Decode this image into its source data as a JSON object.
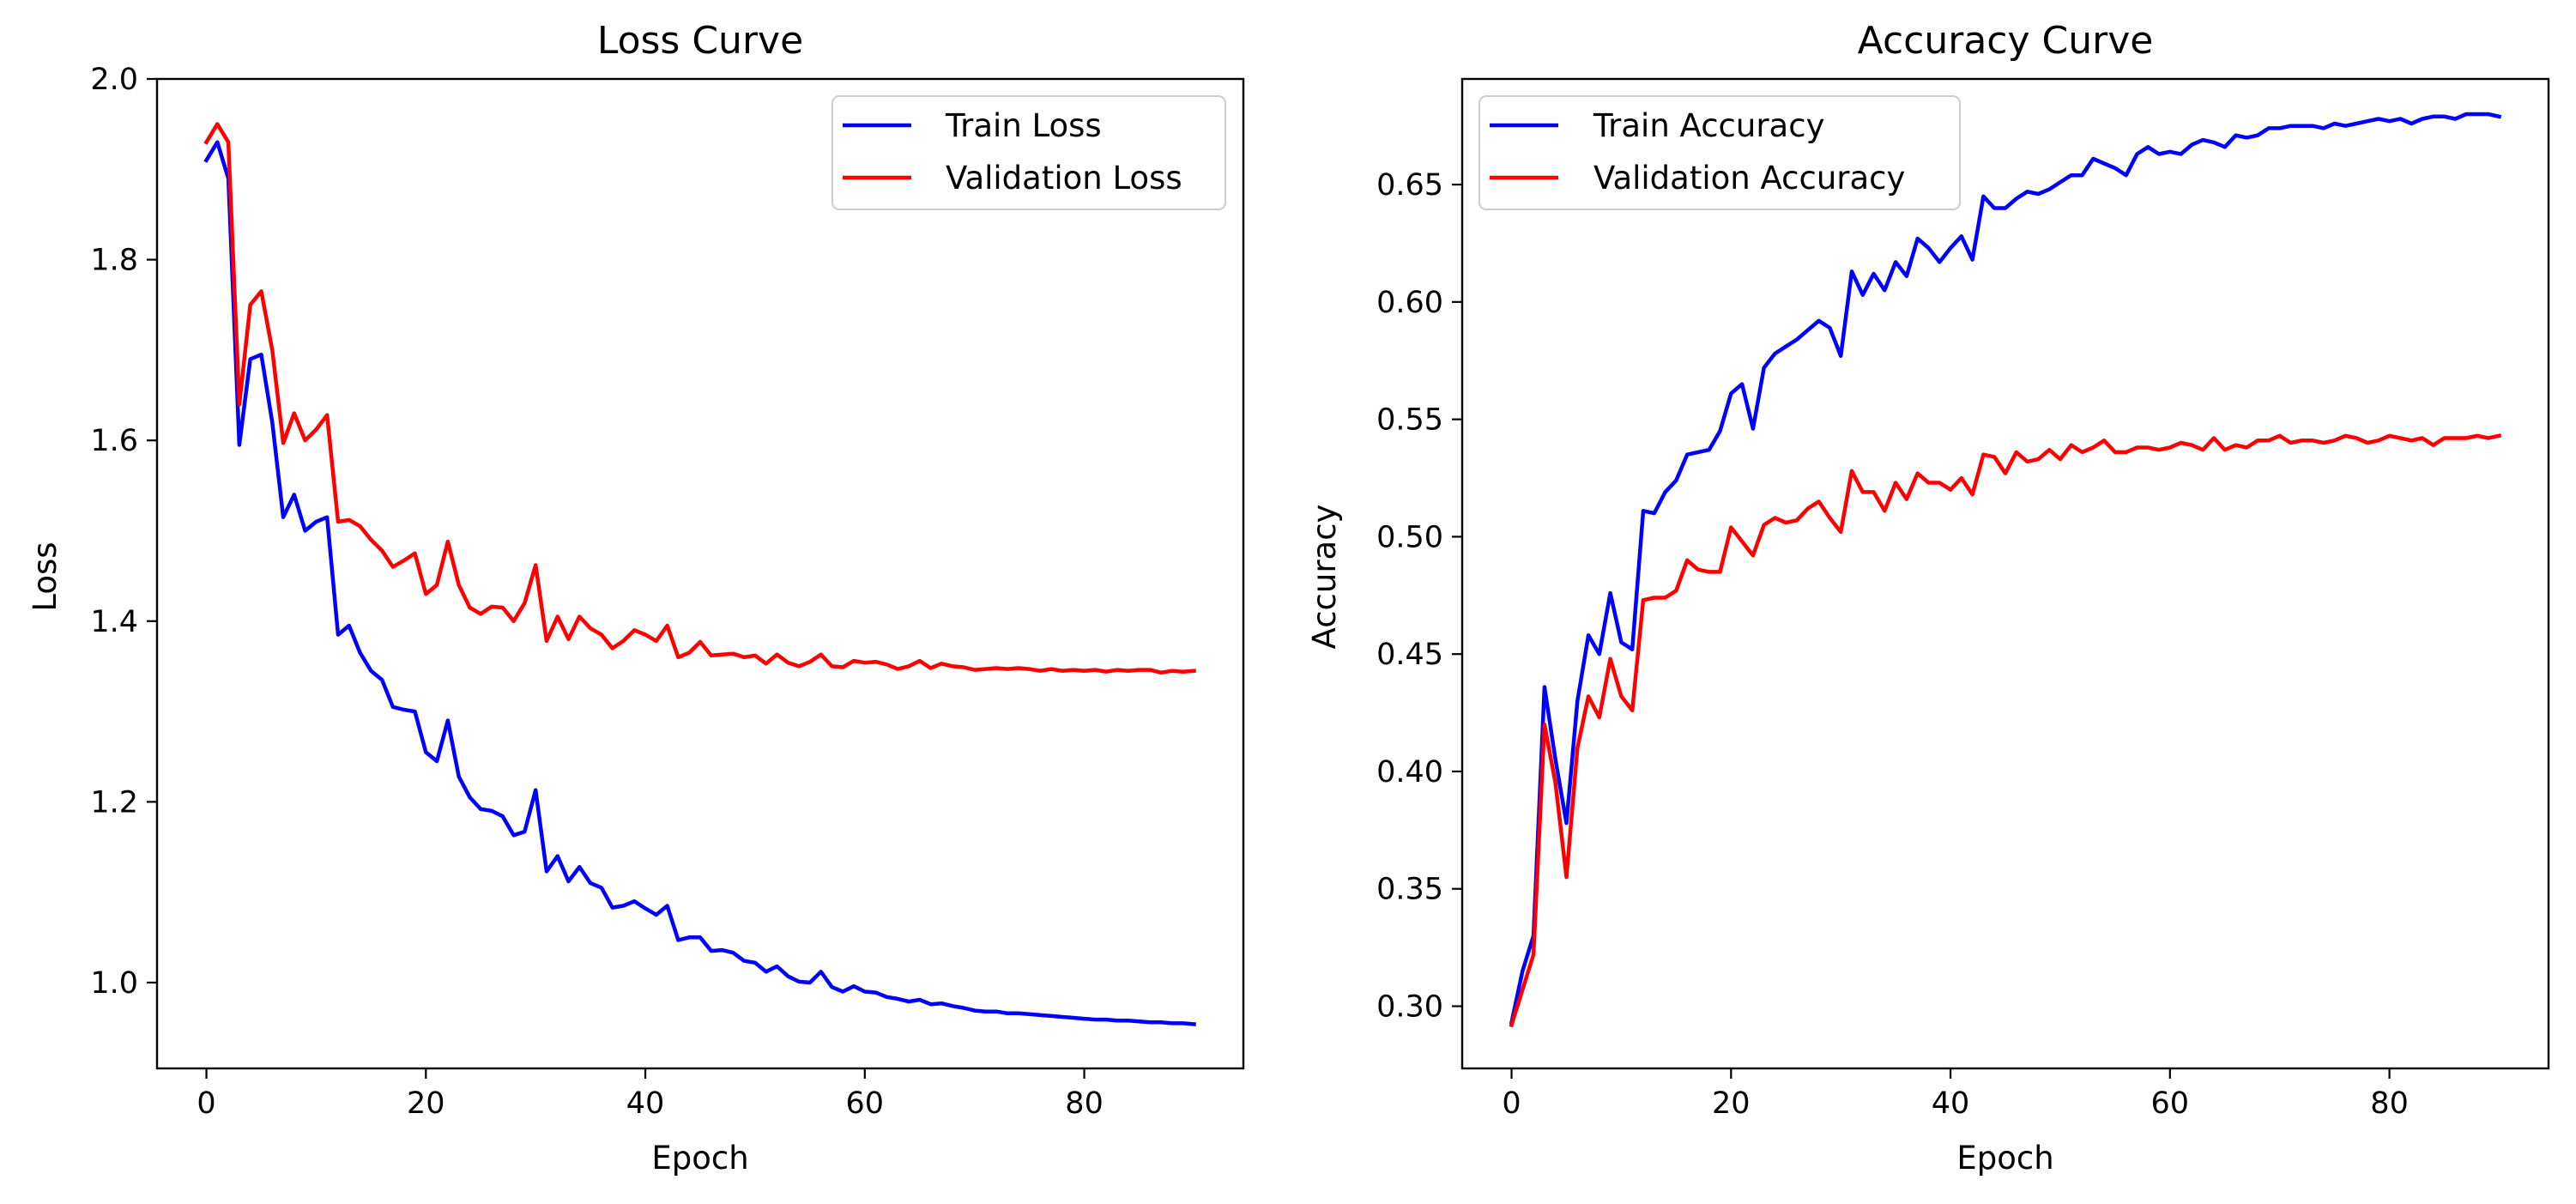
{
  "chart_data": [
    {
      "type": "line",
      "title": "Loss Curve",
      "xlabel": "Epoch",
      "ylabel": "Loss",
      "xlim": [
        -4.5,
        94.5
      ],
      "ylim": [
        0.905,
        2.0
      ],
      "xticks": [
        0,
        20,
        40,
        60,
        80
      ],
      "yticks": [
        1.0,
        1.2,
        1.4,
        1.6,
        1.8,
        2.0
      ],
      "ytick_decimals": 1,
      "grid": false,
      "legend": "top-right",
      "series": [
        {
          "name": "Train Loss",
          "color": "#0000ff",
          "values": [
            1.91,
            1.93,
            1.89,
            1.595,
            1.69,
            1.695,
            1.62,
            1.515,
            1.54,
            1.5,
            1.51,
            1.515,
            1.385,
            1.395,
            1.365,
            1.345,
            1.335,
            1.305,
            1.302,
            1.3,
            1.255,
            1.245,
            1.29,
            1.228,
            1.205,
            1.192,
            1.19,
            1.184,
            1.163,
            1.167,
            1.213,
            1.123,
            1.14,
            1.112,
            1.128,
            1.11,
            1.105,
            1.083,
            1.085,
            1.09,
            1.082,
            1.075,
            1.085,
            1.047,
            1.05,
            1.05,
            1.035,
            1.036,
            1.033,
            1.024,
            1.022,
            1.012,
            1.018,
            1.007,
            1.001,
            1.0,
            1.012,
            0.995,
            0.99,
            0.996,
            0.99,
            0.989,
            0.984,
            0.982,
            0.979,
            0.981,
            0.976,
            0.977,
            0.974,
            0.972,
            0.969,
            0.968,
            0.968,
            0.966,
            0.966,
            0.965,
            0.964,
            0.963,
            0.962,
            0.961,
            0.96,
            0.959,
            0.959,
            0.958,
            0.958,
            0.957,
            0.956,
            0.956,
            0.955,
            0.955,
            0.954
          ]
        },
        {
          "name": "Validation Loss",
          "color": "#ff0000",
          "values": [
            1.93,
            1.95,
            1.93,
            1.64,
            1.75,
            1.765,
            1.7,
            1.597,
            1.63,
            1.6,
            1.612,
            1.628,
            1.51,
            1.512,
            1.505,
            1.49,
            1.478,
            1.46,
            1.467,
            1.475,
            1.43,
            1.44,
            1.488,
            1.44,
            1.415,
            1.408,
            1.416,
            1.415,
            1.4,
            1.42,
            1.462,
            1.378,
            1.405,
            1.38,
            1.405,
            1.392,
            1.385,
            1.37,
            1.378,
            1.39,
            1.385,
            1.378,
            1.395,
            1.36,
            1.365,
            1.377,
            1.362,
            1.363,
            1.364,
            1.36,
            1.362,
            1.353,
            1.363,
            1.354,
            1.35,
            1.355,
            1.363,
            1.35,
            1.349,
            1.356,
            1.354,
            1.355,
            1.352,
            1.347,
            1.35,
            1.356,
            1.348,
            1.353,
            1.35,
            1.349,
            1.346,
            1.347,
            1.348,
            1.347,
            1.348,
            1.347,
            1.345,
            1.347,
            1.345,
            1.346,
            1.345,
            1.346,
            1.344,
            1.346,
            1.345,
            1.346,
            1.346,
            1.343,
            1.345,
            1.344,
            1.345
          ]
        }
      ]
    },
    {
      "type": "line",
      "title": "Accuracy Curve",
      "xlabel": "Epoch",
      "ylabel": "Accuracy",
      "xlim": [
        -4.5,
        94.5
      ],
      "ylim": [
        0.2735,
        0.695
      ],
      "xticks": [
        0,
        20,
        40,
        60,
        80
      ],
      "yticks": [
        0.3,
        0.35,
        0.4,
        0.45,
        0.5,
        0.55,
        0.6,
        0.65
      ],
      "ytick_decimals": 2,
      "grid": false,
      "legend": "top-left",
      "series": [
        {
          "name": "Train Accuracy",
          "color": "#0000ff",
          "values": [
            0.293,
            0.315,
            0.33,
            0.436,
            0.405,
            0.378,
            0.43,
            0.458,
            0.45,
            0.476,
            0.455,
            0.452,
            0.511,
            0.51,
            0.519,
            0.524,
            0.535,
            0.536,
            0.537,
            0.545,
            0.561,
            0.565,
            0.546,
            0.572,
            0.578,
            0.581,
            0.584,
            0.588,
            0.592,
            0.589,
            0.577,
            0.613,
            0.603,
            0.612,
            0.605,
            0.617,
            0.611,
            0.627,
            0.623,
            0.617,
            0.623,
            0.628,
            0.618,
            0.645,
            0.64,
            0.64,
            0.644,
            0.647,
            0.646,
            0.648,
            0.651,
            0.654,
            0.654,
            0.661,
            0.659,
            0.657,
            0.654,
            0.663,
            0.666,
            0.663,
            0.664,
            0.663,
            0.667,
            0.669,
            0.668,
            0.666,
            0.671,
            0.67,
            0.671,
            0.674,
            0.674,
            0.675,
            0.675,
            0.675,
            0.674,
            0.676,
            0.675,
            0.676,
            0.677,
            0.678,
            0.677,
            0.678,
            0.676,
            0.678,
            0.679,
            0.679,
            0.678,
            0.68,
            0.68,
            0.68,
            0.679
          ]
        },
        {
          "name": "Validation Accuracy",
          "color": "#ff0000",
          "values": [
            0.292,
            0.307,
            0.322,
            0.42,
            0.395,
            0.355,
            0.41,
            0.432,
            0.423,
            0.448,
            0.432,
            0.426,
            0.473,
            0.474,
            0.474,
            0.477,
            0.49,
            0.486,
            0.485,
            0.485,
            0.504,
            0.498,
            0.492,
            0.505,
            0.508,
            0.506,
            0.507,
            0.512,
            0.515,
            0.508,
            0.502,
            0.528,
            0.519,
            0.519,
            0.511,
            0.523,
            0.516,
            0.527,
            0.523,
            0.523,
            0.52,
            0.525,
            0.518,
            0.535,
            0.534,
            0.527,
            0.536,
            0.532,
            0.533,
            0.537,
            0.533,
            0.539,
            0.536,
            0.538,
            0.541,
            0.536,
            0.536,
            0.538,
            0.538,
            0.537,
            0.538,
            0.54,
            0.539,
            0.537,
            0.542,
            0.537,
            0.539,
            0.538,
            0.541,
            0.541,
            0.543,
            0.54,
            0.541,
            0.541,
            0.54,
            0.541,
            0.543,
            0.542,
            0.54,
            0.541,
            0.543,
            0.542,
            0.541,
            0.542,
            0.539,
            0.542,
            0.542,
            0.542,
            0.543,
            0.542,
            0.543
          ]
        }
      ]
    }
  ]
}
